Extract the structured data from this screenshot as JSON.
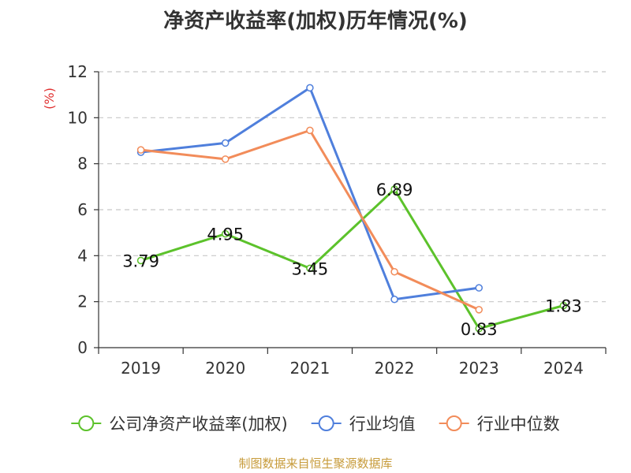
{
  "chart_data": {
    "type": "line",
    "title": "净资产收益率(加权)历年情况(%)",
    "y_unit": "(%)",
    "categories": [
      "2019",
      "2020",
      "2021",
      "2022",
      "2023",
      "2024"
    ],
    "ylim": [
      0,
      12
    ],
    "yticks": [
      "0",
      "2",
      "4",
      "6",
      "8",
      "10",
      "12"
    ],
    "grid": true,
    "legend_position": "bottom",
    "series": [
      {
        "name": "公司净资产收益率(加权)",
        "color": "#5cc22b",
        "values": [
          3.79,
          4.95,
          3.45,
          6.89,
          0.83,
          1.83
        ],
        "labels": [
          "3.79",
          "4.95",
          "3.45",
          "6.89",
          "0.83",
          "1.83"
        ]
      },
      {
        "name": "行业均值",
        "color": "#4f7fdc",
        "values": [
          8.5,
          8.9,
          11.3,
          2.1,
          2.6,
          null
        ]
      },
      {
        "name": "行业中位数",
        "color": "#f28c5a",
        "values": [
          8.6,
          8.2,
          9.45,
          3.3,
          1.65,
          null
        ]
      }
    ]
  },
  "source": "制图数据来自恒生聚源数据库"
}
